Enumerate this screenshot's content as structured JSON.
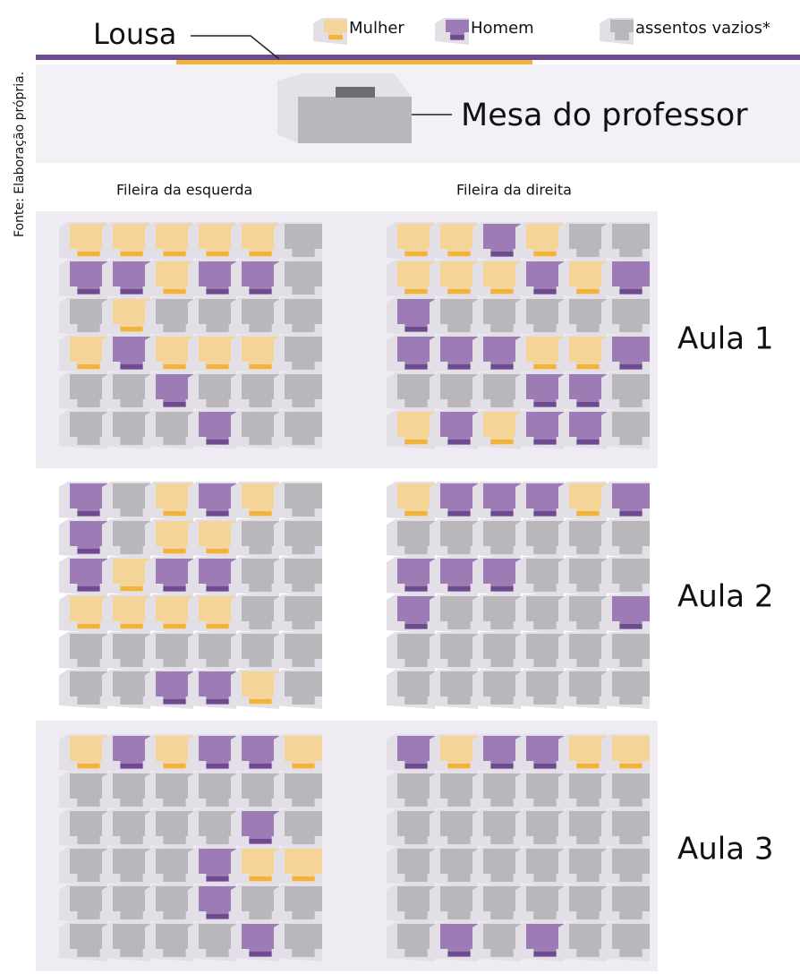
{
  "header": {
    "title": "Lousa",
    "desk": "Mesa do professor",
    "source": "Fonte: Elaboração própria."
  },
  "legend": [
    {
      "label": "Mulher",
      "color": "#f5d49a",
      "accent": "#f0b43c"
    },
    {
      "label": "Homem",
      "color": "#9d7bb5",
      "accent": "#6e4a8e"
    },
    {
      "label": "assentos vazios*",
      "color": "#b9b7bb",
      "accent": "#b9b7bb"
    }
  ],
  "columns": [
    "Fileira da esquerda",
    "Fileira da direita"
  ],
  "aulas": [
    {
      "label": "Aula 1",
      "left": [
        [
          0,
          0,
          0,
          0,
          0,
          2
        ],
        [
          1,
          1,
          0,
          1,
          1,
          2
        ],
        [
          2,
          0,
          2,
          2,
          2,
          2
        ],
        [
          0,
          1,
          0,
          0,
          0,
          2
        ],
        [
          2,
          2,
          1,
          2,
          2,
          2
        ],
        [
          2,
          2,
          2,
          1,
          2,
          2
        ]
      ],
      "right": [
        [
          0,
          0,
          1,
          0,
          2,
          2
        ],
        [
          0,
          0,
          0,
          1,
          0,
          1
        ],
        [
          1,
          2,
          2,
          2,
          2,
          2
        ],
        [
          1,
          1,
          1,
          0,
          0,
          1
        ],
        [
          2,
          2,
          2,
          1,
          1,
          2
        ],
        [
          0,
          1,
          0,
          1,
          1,
          2
        ]
      ]
    },
    {
      "label": "Aula 2",
      "left": [
        [
          1,
          2,
          0,
          1,
          0,
          2
        ],
        [
          1,
          2,
          0,
          0,
          2,
          2
        ],
        [
          1,
          0,
          1,
          1,
          2,
          2
        ],
        [
          0,
          0,
          0,
          0,
          2,
          2
        ],
        [
          2,
          2,
          2,
          2,
          2,
          2
        ],
        [
          2,
          2,
          1,
          1,
          0,
          2
        ]
      ],
      "right": [
        [
          0,
          1,
          1,
          1,
          0,
          1
        ],
        [
          2,
          2,
          2,
          2,
          2,
          2
        ],
        [
          1,
          1,
          1,
          2,
          2,
          2
        ],
        [
          1,
          2,
          2,
          2,
          2,
          1
        ],
        [
          2,
          2,
          2,
          2,
          2,
          2
        ],
        [
          2,
          2,
          2,
          2,
          2,
          2
        ]
      ]
    },
    {
      "label": "Aula 3",
      "left": [
        [
          0,
          1,
          0,
          1,
          1,
          0
        ],
        [
          2,
          2,
          2,
          2,
          2,
          2
        ],
        [
          2,
          2,
          2,
          2,
          1,
          2
        ],
        [
          2,
          2,
          2,
          1,
          0,
          0
        ],
        [
          2,
          2,
          2,
          1,
          2,
          2
        ],
        [
          2,
          2,
          2,
          2,
          1,
          2
        ]
      ],
      "right": [
        [
          1,
          0,
          1,
          1,
          0,
          0
        ],
        [
          2,
          2,
          2,
          2,
          2,
          2
        ],
        [
          2,
          2,
          2,
          2,
          2,
          2
        ],
        [
          2,
          2,
          2,
          2,
          2,
          2
        ],
        [
          2,
          2,
          2,
          2,
          2,
          2
        ],
        [
          2,
          1,
          2,
          1,
          2,
          2
        ]
      ]
    }
  ]
}
